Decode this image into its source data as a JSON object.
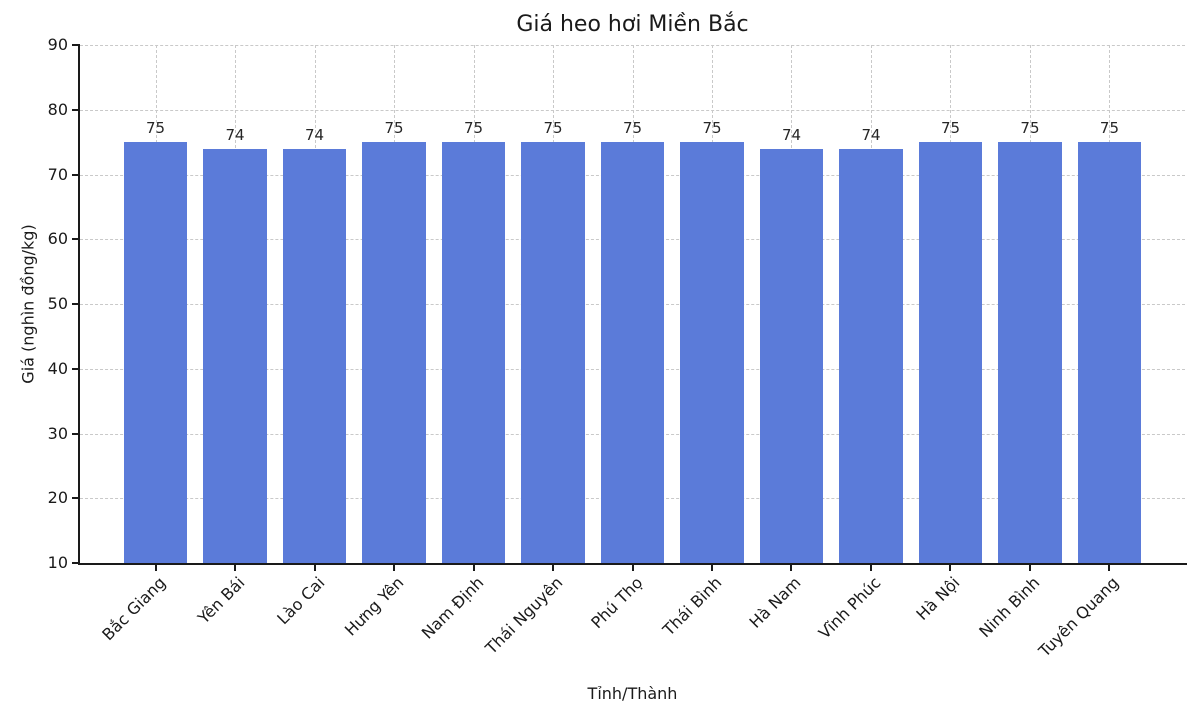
{
  "figure": {
    "title": "Giá heo hơi Miền Bắc",
    "xlabel": "Tỉnh/Thành",
    "ylabel": "Giá (nghìn đồng/kg)"
  },
  "chart_data": {
    "type": "bar",
    "title": "Giá heo hơi Miền Bắc",
    "xlabel": "Tỉnh/Thành",
    "ylabel": "Giá (nghìn đồng/kg)",
    "categories": [
      "Bắc Giang",
      "Yên Bái",
      "Lào Cai",
      "Hưng Yên",
      "Nam Định",
      "Thái Nguyên",
      "Phú Thọ",
      "Thái Bình",
      "Hà Nam",
      "Vĩnh Phúc",
      "Hà Nội",
      "Ninh Bình",
      "Tuyên Quang"
    ],
    "values": [
      75,
      74,
      74,
      75,
      75,
      75,
      75,
      75,
      74,
      74,
      75,
      75,
      75
    ],
    "value_labels": [
      "75",
      "74",
      "74",
      "75",
      "75",
      "75",
      "75",
      "75",
      "74",
      "74",
      "75",
      "75",
      "75"
    ],
    "ylim": [
      10,
      90
    ],
    "yticks": [
      10,
      20,
      30,
      40,
      50,
      60,
      70,
      80,
      90
    ],
    "ytick_labels": [
      "10",
      "20",
      "30",
      "40",
      "50",
      "60",
      "70",
      "80",
      "90"
    ],
    "bar_color": "#5b7bd9",
    "bar_width_fraction": 0.8,
    "grid": {
      "show": true,
      "style": "dashed",
      "color": "#c9c9c9"
    },
    "legend": "none",
    "x_tick_rotation_deg": 45
  }
}
